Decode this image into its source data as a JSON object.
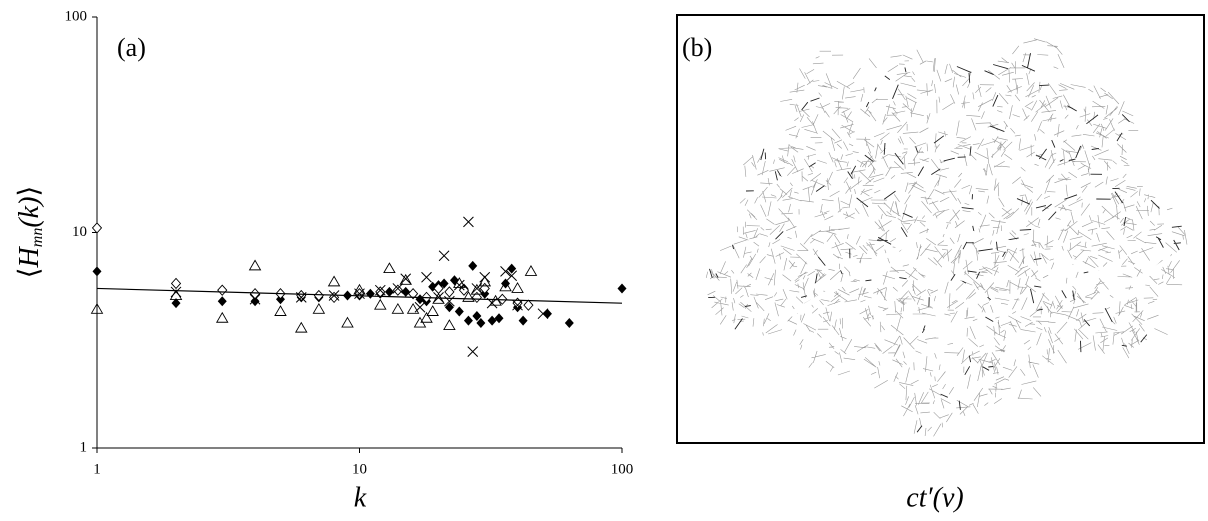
{
  "chart_data": [
    {
      "type": "scatter",
      "label": "(a)",
      "xlabel": "k",
      "ylabel": [
        "⟨",
        "H",
        "mn",
        "(k)",
        "⟩"
      ],
      "xscale": "log",
      "yscale": "log",
      "xlim": [
        1,
        100
      ],
      "ylim": [
        1,
        100
      ],
      "xticks": [
        1,
        10,
        100
      ],
      "yticks": [
        1,
        10,
        100
      ],
      "series": [
        {
          "marker": "filled-diamond",
          "color": "#000000",
          "x": [
            1,
            2,
            3,
            4,
            5,
            6,
            7,
            8,
            9,
            10,
            11,
            12,
            13,
            14,
            15,
            16,
            17,
            18,
            19,
            20,
            21,
            22,
            23,
            24,
            25,
            26,
            27,
            28,
            29,
            30,
            32,
            34,
            36,
            38,
            40,
            42,
            52,
            63,
            100
          ],
          "values": [
            6.6,
            4.7,
            4.8,
            4.8,
            4.9,
            5.0,
            5.0,
            5.0,
            5.1,
            5.1,
            5.2,
            5.2,
            5.3,
            5.4,
            5.3,
            5.2,
            4.9,
            4.8,
            5.6,
            5.7,
            5.8,
            4.5,
            6.0,
            4.3,
            5.5,
            3.9,
            7.0,
            4.1,
            3.8,
            5.2,
            3.9,
            4.0,
            5.8,
            6.8,
            4.5,
            3.9,
            4.2,
            3.8,
            5.5
          ]
        },
        {
          "marker": "open-diamond",
          "color": "#000000",
          "x": [
            1,
            2,
            3,
            4,
            5,
            6,
            7,
            8,
            10,
            12,
            14,
            16,
            18,
            20,
            22,
            25,
            28,
            30,
            35,
            40,
            44
          ],
          "values": [
            10.5,
            5.8,
            5.4,
            5.2,
            5.2,
            5.1,
            5.1,
            5.0,
            5.2,
            5.3,
            5.4,
            5.2,
            5.0,
            5.5,
            5.3,
            5.4,
            5.0,
            5.5,
            4.9,
            4.7,
            4.6
          ]
        },
        {
          "marker": "open-triangle",
          "color": "#000000",
          "x": [
            1,
            2,
            3,
            4,
            5,
            6,
            7,
            8,
            9,
            10,
            12,
            13,
            14,
            15,
            16,
            17,
            18,
            19,
            20,
            22,
            24,
            26,
            28,
            30,
            33,
            36,
            40,
            45
          ],
          "values": [
            4.4,
            5.1,
            4.0,
            7.0,
            4.3,
            3.6,
            4.4,
            5.9,
            3.8,
            5.4,
            4.6,
            6.8,
            4.4,
            6.0,
            4.4,
            3.8,
            4.0,
            4.3,
            4.9,
            3.7,
            5.8,
            5.0,
            5.4,
            5.9,
            4.8,
            5.6,
            5.5,
            6.6
          ]
        },
        {
          "marker": "cross",
          "color": "#000000",
          "x": [
            2,
            4,
            6,
            8,
            10,
            12,
            14,
            15,
            17,
            18,
            20,
            21,
            22,
            24,
            26,
            27,
            28,
            30,
            32,
            36,
            38,
            40,
            50
          ],
          "values": [
            5.3,
            4.9,
            5.0,
            5.1,
            5.2,
            5.4,
            5.5,
            6.1,
            4.5,
            6.2,
            5.0,
            7.8,
            4.8,
            5.7,
            11.2,
            2.8,
            5.5,
            6.2,
            4.7,
            6.6,
            6.3,
            4.6,
            4.2
          ]
        },
        {
          "marker": "line",
          "color": "#000000",
          "x": [
            1,
            100
          ],
          "values": [
            5.5,
            4.7
          ]
        }
      ]
    },
    {
      "type": "map",
      "label": "(b)",
      "xlabel": "ct′(v)"
    }
  ]
}
